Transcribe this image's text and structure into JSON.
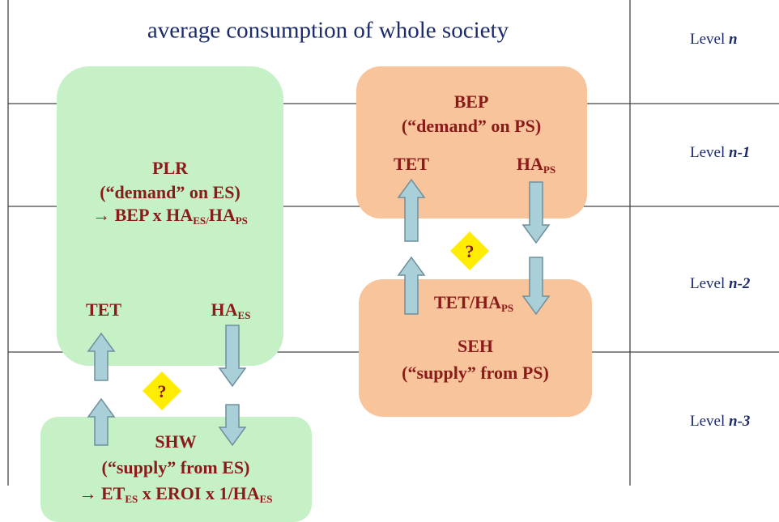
{
  "title": "average consumption of whole society",
  "levels": [
    {
      "label": "Level",
      "index": "n"
    },
    {
      "label": "Level",
      "index": "n-1"
    },
    {
      "label": "Level",
      "index": "n-2"
    },
    {
      "label": "Level",
      "index": "n-3"
    }
  ],
  "plr": {
    "name": "PLR",
    "role": "(“demand” on ES)",
    "formula": [
      "→ BEP x HA",
      "ES/",
      "HA",
      "PS"
    ],
    "up": [
      "TET"
    ],
    "down": [
      "HA",
      "ES"
    ]
  },
  "shw": {
    "name": "SHW",
    "role": "(“supply” from ES)",
    "formula": [
      "→ ET",
      "ES",
      " x  EROI x 1/HA",
      "ES"
    ]
  },
  "bep": {
    "name": "BEP",
    "role": "(“demand” on PS)",
    "up": [
      "TET"
    ],
    "down": [
      "HA",
      "PS"
    ]
  },
  "seh": {
    "ratio": [
      "TET/HA",
      "PS"
    ],
    "name": "SEH",
    "role": "(“supply” from PS)"
  },
  "question_marks": [
    "?",
    "?"
  ]
}
